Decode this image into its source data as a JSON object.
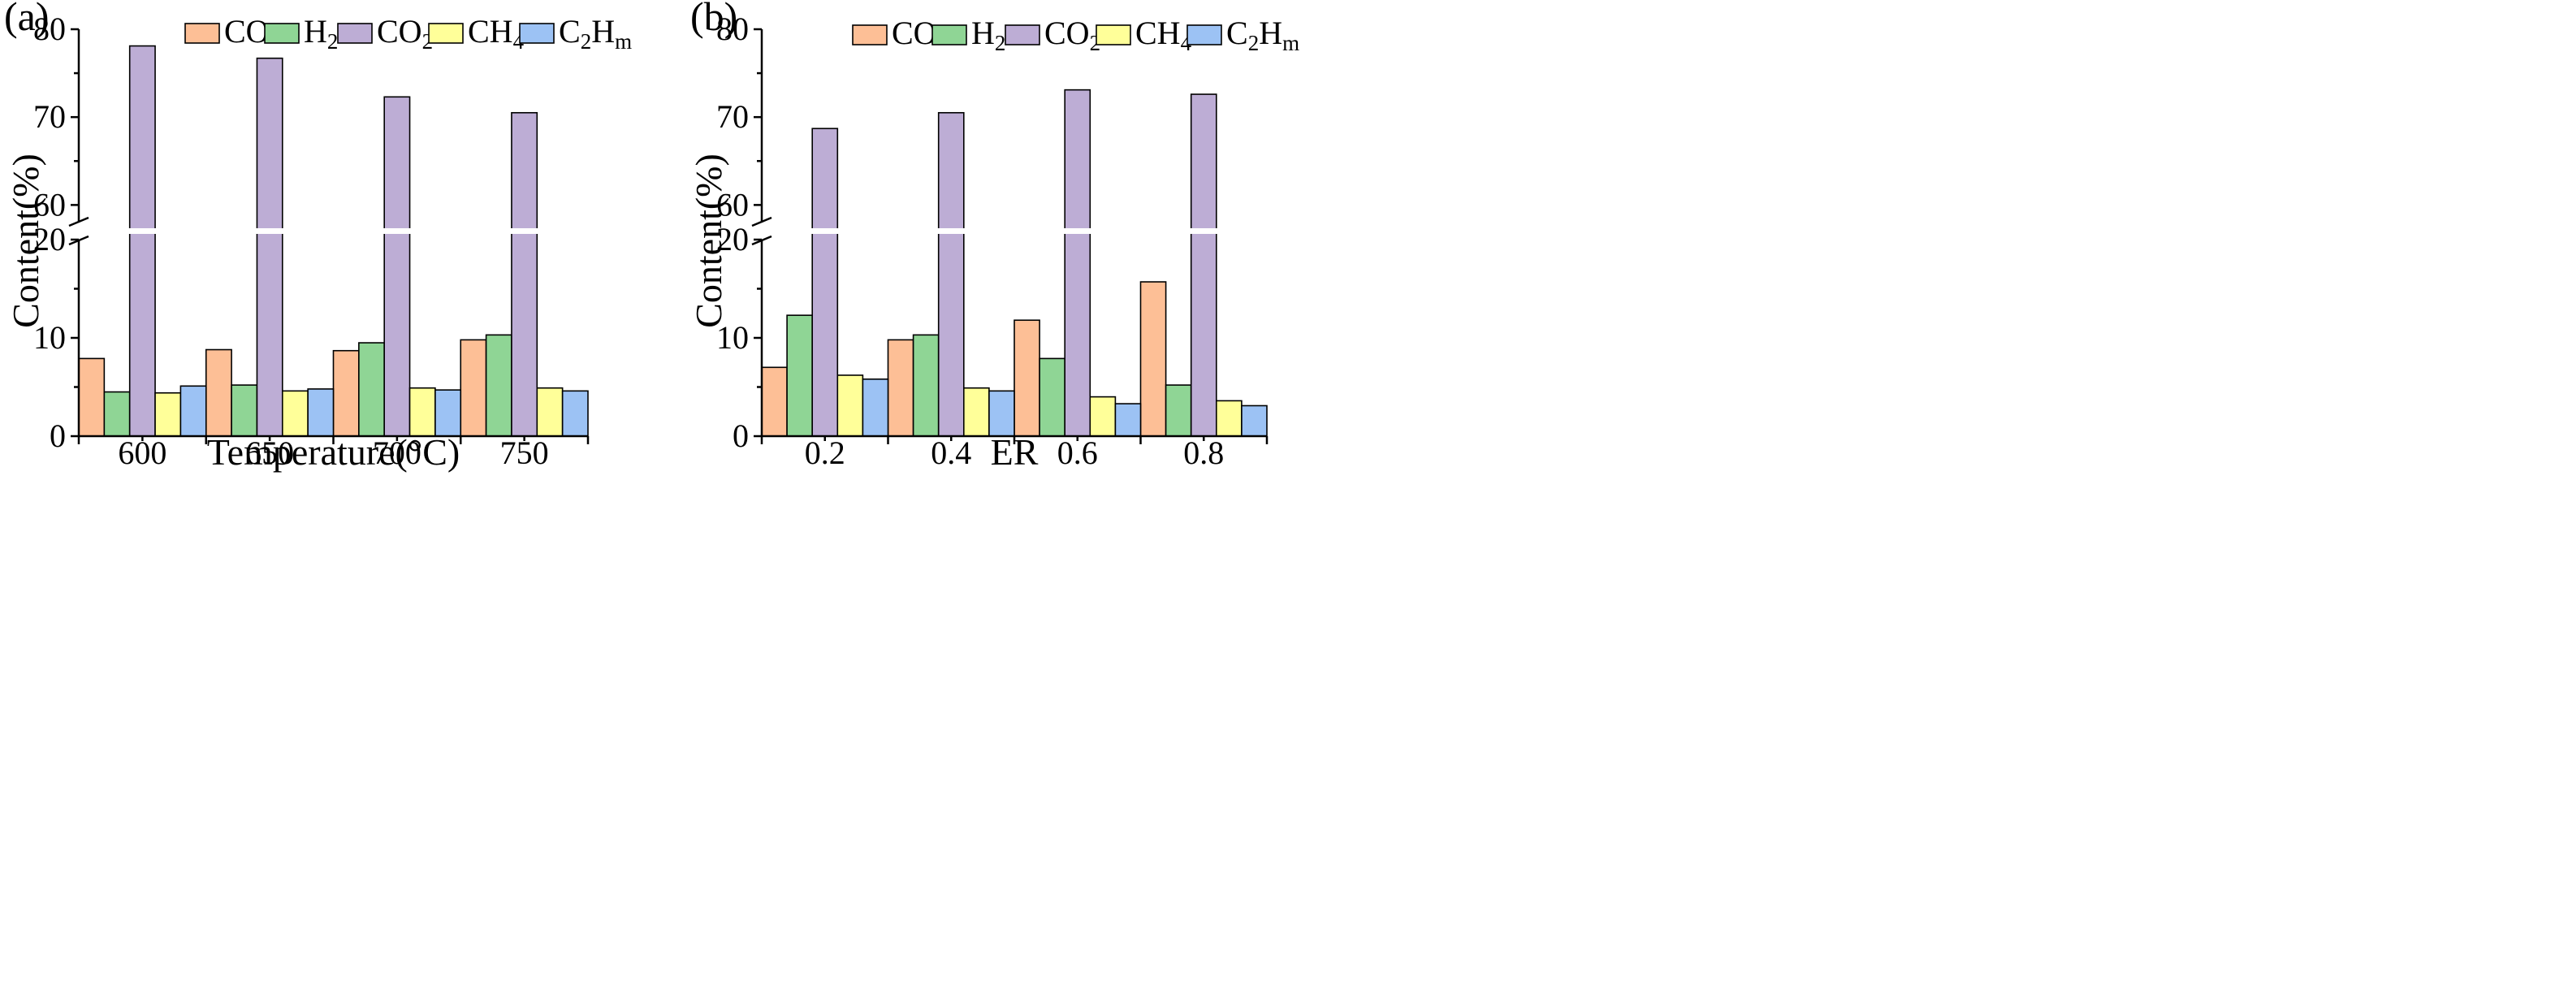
{
  "chart_data": [
    {
      "panel_label": "(a)",
      "type": "bar",
      "xlabel": "Temperature(°C)",
      "ylabel": "Content(%)",
      "categories": [
        "600",
        "650",
        "700",
        "750"
      ],
      "y_axis_break": {
        "lower_range": [
          0,
          20
        ],
        "upper_range": [
          58,
          80
        ]
      },
      "yticks_lower": [
        "0",
        "10",
        "20"
      ],
      "yticks_upper": [
        "60",
        "70",
        "80"
      ],
      "series": [
        {
          "name": "CO",
          "values": [
            7.9,
            8.8,
            8.7,
            9.8
          ]
        },
        {
          "name": "H2",
          "values": [
            4.5,
            5.2,
            9.5,
            10.3
          ]
        },
        {
          "name": "CO2",
          "values": [
            78.1,
            76.7,
            72.3,
            70.5
          ]
        },
        {
          "name": "CH4",
          "values": [
            4.4,
            4.6,
            4.9,
            4.9
          ]
        },
        {
          "name": "C2Hm",
          "values": [
            5.1,
            4.8,
            4.7,
            4.6
          ]
        }
      ],
      "legend_position": "top-right"
    },
    {
      "panel_label": "(b)",
      "type": "bar",
      "xlabel": "ER",
      "ylabel": "Content(%)",
      "categories": [
        "0.2",
        "0.4",
        "0.6",
        "0.8"
      ],
      "y_axis_break": {
        "lower_range": [
          0,
          20
        ],
        "upper_range": [
          58,
          80
        ]
      },
      "yticks_lower": [
        "0",
        "10",
        "20"
      ],
      "yticks_upper": [
        "60",
        "70",
        "80"
      ],
      "series": [
        {
          "name": "CO",
          "values": [
            7.0,
            9.8,
            11.8,
            15.7
          ]
        },
        {
          "name": "H2",
          "values": [
            12.3,
            10.3,
            7.9,
            5.2
          ]
        },
        {
          "name": "CO2",
          "values": [
            68.7,
            70.5,
            73.1,
            72.6
          ]
        },
        {
          "name": "CH4",
          "values": [
            6.2,
            4.9,
            4.0,
            3.6
          ]
        },
        {
          "name": "C2Hm",
          "values": [
            5.8,
            4.6,
            3.3,
            3.1
          ]
        }
      ],
      "legend_position": "top-right"
    }
  ],
  "legend": [
    {
      "name": "CO",
      "base": "CO",
      "sub": "",
      "sub2_base": "",
      "sub2": ""
    },
    {
      "name": "H2",
      "base": "H",
      "sub": "2",
      "sub2_base": "",
      "sub2": ""
    },
    {
      "name": "CO2",
      "base": "CO",
      "sub": "2",
      "sub2_base": "",
      "sub2": ""
    },
    {
      "name": "CH4",
      "base": "CH",
      "sub": "4",
      "sub2_base": "",
      "sub2": ""
    },
    {
      "name": "C2Hm",
      "base": "C",
      "sub": "2",
      "sub2_base": "H",
      "sub2": "m"
    }
  ],
  "colors": {
    "CO": "#FDBF96",
    "H2": "#8FD595",
    "CO2": "#BDADD5",
    "CH4": "#FFFF99",
    "C2Hm": "#9CC2F4"
  }
}
